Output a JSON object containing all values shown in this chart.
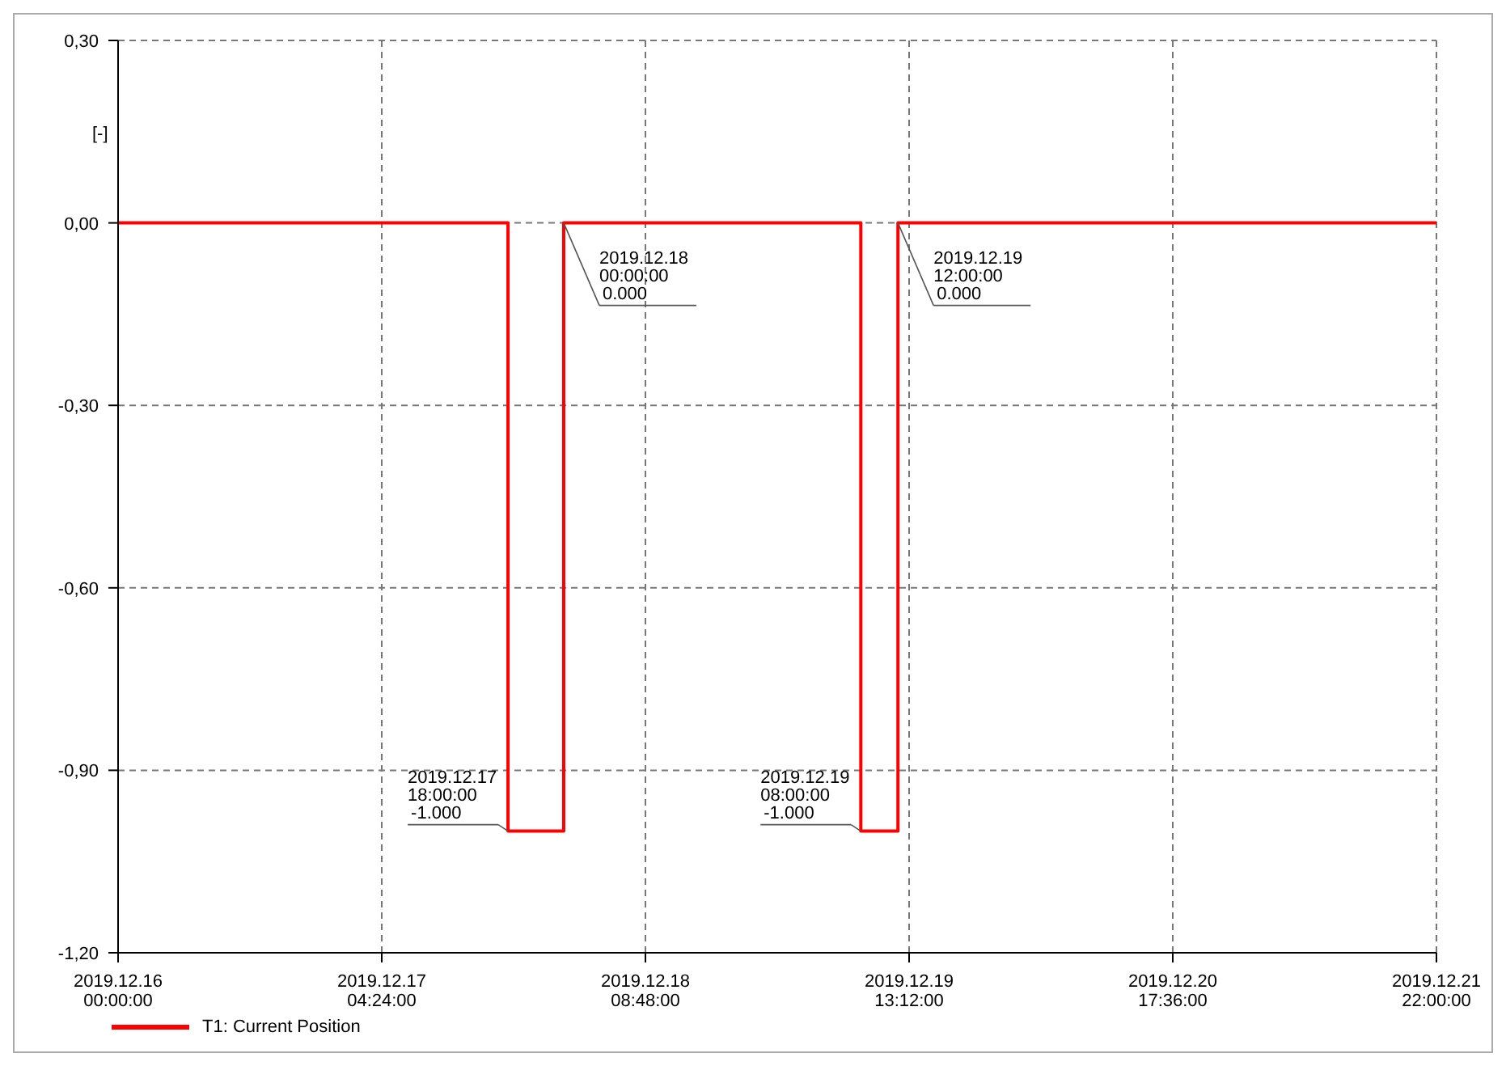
{
  "chart_data": {
    "type": "step",
    "ylabel": "[-]",
    "legend": "bottom left",
    "grid": true,
    "line_style": "solid",
    "marker": "none",
    "x": [
      "2019-12-16T00:00",
      "2019-12-17T18:00",
      "2019-12-18T00:00",
      "2019-12-19T08:00",
      "2019-12-19T12:00",
      "2019-12-21T22:00"
    ],
    "series": [
      {
        "name": "T1: Current Position",
        "color": "#ff0000",
        "values": [
          0,
          -1,
          0,
          -1,
          0,
          0
        ]
      }
    ],
    "xlim": [
      "2019-12-16T00:00",
      "2019-12-21T22:00"
    ],
    "xticks": [
      {
        "value": "2019-12-16T00:00",
        "label": "2019.12.16\n00:00:00"
      },
      {
        "value": "2019-12-17T04:24",
        "label": "2019.12.17\n04:24:00"
      },
      {
        "value": "2019-12-18T08:48",
        "label": "2019.12.18\n08:48:00"
      },
      {
        "value": "2019-12-19T13:12",
        "label": "2019.12.19\n13:12:00"
      },
      {
        "value": "2019-12-20T17:36",
        "label": "2019.12.20\n17:36:00"
      },
      {
        "value": "2019-12-21T22:00",
        "label": "2019.12.21\n22:00:00"
      }
    ],
    "ylim": [
      -1.2,
      0.3
    ],
    "yticks": [
      {
        "value": -1.2,
        "label": "-1,20"
      },
      {
        "value": -0.9,
        "label": "-0,90"
      },
      {
        "value": -0.6,
        "label": "-0,60"
      },
      {
        "value": -0.3,
        "label": "-0,30"
      },
      {
        "value": 0,
        "label": "0,00"
      },
      {
        "value": 0.3,
        "label": "0,30"
      }
    ],
    "annotations": [
      {
        "text": "2019.12.17\n18:00:00\n-1.000",
        "x": "2019-12-17T18:00",
        "y": -1
      },
      {
        "text": "2019.12.18\n00:00:00\n0.000",
        "x": "2019-12-18T00:00",
        "y": 0
      },
      {
        "text": "2019.12.19\n08:00:00\n-1.000",
        "x": "2019-12-19T08:00",
        "y": -1
      },
      {
        "text": "2019.12.19\n12:00:00\n0.000",
        "x": "2019-12-19T12:00",
        "y": 0
      }
    ]
  }
}
